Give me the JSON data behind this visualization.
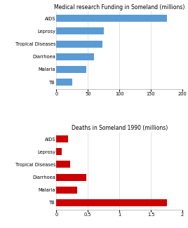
{
  "chart1": {
    "title": "Medical research Funding in Someland (millions)",
    "categories": [
      "AIDS",
      "Leprosy",
      "Tropical Diseases",
      "Diarrhoea",
      "Malaria",
      "TB"
    ],
    "values": [
      175,
      75,
      73,
      60,
      48,
      25
    ],
    "color": "#5B9BD5",
    "xlim": [
      0,
      200
    ],
    "xticks": [
      0,
      50,
      100,
      150,
      200
    ]
  },
  "chart2": {
    "title": "Deaths in Someland 1990 (millions)",
    "categories": [
      "AIDS",
      "Leprosy",
      "Tropical Diseases",
      "Diarrhoea",
      "Malaria",
      "TB"
    ],
    "values": [
      0.18,
      0.08,
      0.22,
      0.48,
      0.33,
      1.75
    ],
    "color": "#CC0000",
    "xlim": [
      0,
      2
    ],
    "xticks": [
      0,
      0.5,
      1,
      1.5,
      2
    ]
  },
  "title_fontsize": 5.5,
  "label_fontsize": 4.8,
  "tick_fontsize": 4.8,
  "bg_color": "#FFFFFF",
  "bar_height": 0.55,
  "grid_color": "#CCCCCC",
  "spine_color": "#AAAAAA"
}
